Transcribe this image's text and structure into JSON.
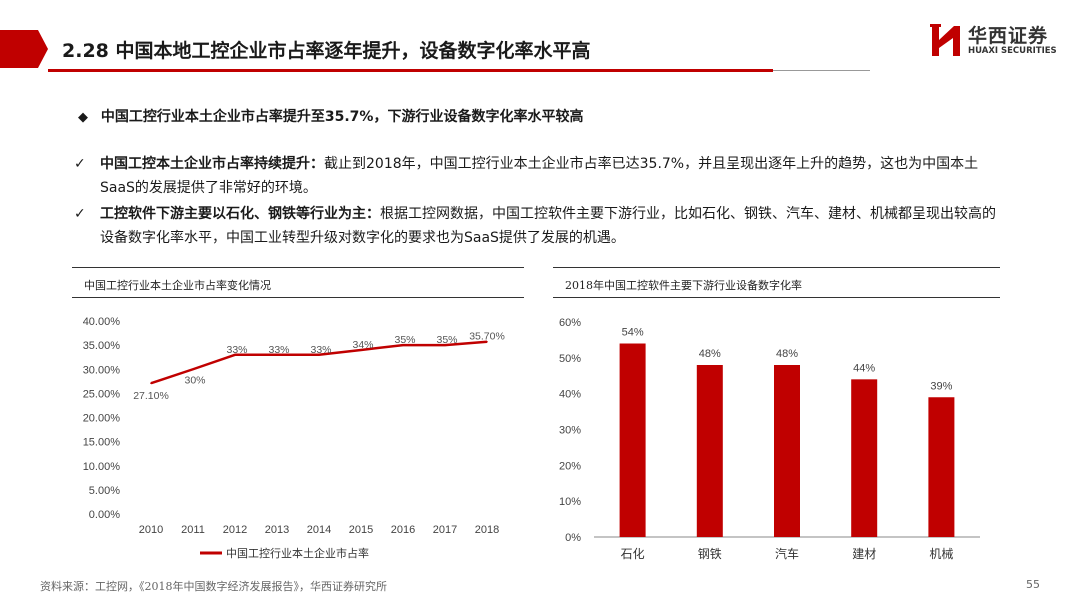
{
  "header": {
    "title": "2.28 中国本地工控企业市占率逐年提升，设备数字化率水平高",
    "accent_color": "#c00000"
  },
  "logo": {
    "name_cn": "华西证券",
    "name_en": "HUAXI SECURITIES"
  },
  "lead": {
    "marker": "◆",
    "text": "中国工控行业本土企业市占率提升至35.7%，下游行业设备数字化率水平较高"
  },
  "bullets": [
    {
      "marker": "✓",
      "title": "中国工控本土企业市占率持续提升：",
      "text": "截止到2018年，中国工控行业本土企业市占率已达35.7%，并且呈现出逐年上升的趋势，这也为中国本土SaaS的发展提供了非常好的环境。"
    },
    {
      "marker": "✓",
      "title": "工控软件下游主要以石化、钢铁等行业为主：",
      "text": "根据工控网数据，中国工控软件主要下游行业，比如石化、钢铁、汽车、建材、机械都呈现出较高的设备数字化率水平，中国工业转型升级对数字化的要求也为SaaS提供了发展的机遇。"
    }
  ],
  "chart_data": [
    {
      "type": "line",
      "title": "中国工控行业本土企业市占率变化情况",
      "categories": [
        "2010",
        "2011",
        "2012",
        "2013",
        "2014",
        "2015",
        "2016",
        "2017",
        "2018"
      ],
      "series": [
        {
          "name": "中国工控行业本土企业市占率",
          "values": [
            27.1,
            30,
            33,
            33,
            33,
            34,
            35,
            35,
            35.7
          ],
          "labels": [
            "27.10%",
            "30%",
            "33%",
            "33%",
            "33%",
            "34%",
            "35%",
            "35%",
            "35.70%"
          ],
          "color": "#c00000"
        }
      ],
      "yticks": [
        "0.00%",
        "5.00%",
        "10.00%",
        "15.00%",
        "20.00%",
        "25.00%",
        "30.00%",
        "35.00%",
        "40.00%"
      ],
      "ylim": [
        0,
        40
      ],
      "grid": false,
      "legend": "bottom"
    },
    {
      "type": "bar",
      "title": "2018年中国工控软件主要下游行业设备数字化率",
      "categories": [
        "石化",
        "钢铁",
        "汽车",
        "建材",
        "机械"
      ],
      "values": [
        54,
        48,
        48,
        44,
        39
      ],
      "labels": [
        "54%",
        "48%",
        "48%",
        "44%",
        "39%"
      ],
      "yticks": [
        "0%",
        "10%",
        "20%",
        "30%",
        "40%",
        "50%",
        "60%"
      ],
      "ylim": [
        0,
        60
      ],
      "color": "#c00000",
      "grid": false
    }
  ],
  "footer": {
    "source": "资料来源：工控网，《2018年中国数字经济发展报告》，华西证券研究所",
    "page_number": "55"
  }
}
